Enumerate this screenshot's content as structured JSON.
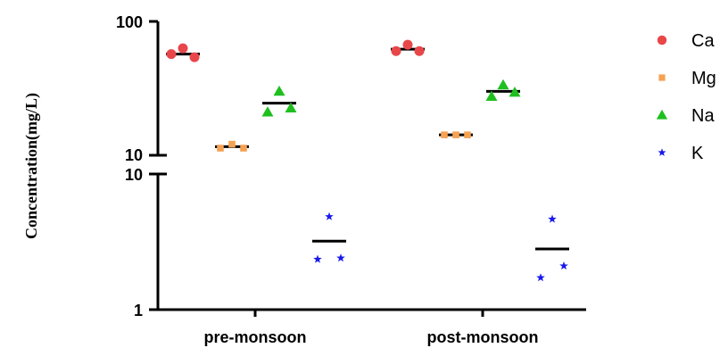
{
  "chart_data": {
    "type": "scatter",
    "ylabel": "Concentration(mg/L)",
    "yscale": "log",
    "axis_break": [
      10,
      10
    ],
    "y_segments": [
      {
        "range": [
          10,
          100
        ],
        "ticks": [
          "10",
          "100"
        ]
      },
      {
        "range": [
          1,
          10
        ],
        "ticks": [
          "1",
          "10"
        ]
      }
    ],
    "categories": [
      "pre-monsoon",
      "post-monsoon"
    ],
    "legend_position": "right",
    "series": [
      {
        "name": "Ca",
        "marker": "circle",
        "color": "#e8474a",
        "points": [
          [
            57,
            63,
            54
          ],
          [
            60,
            67,
            60
          ]
        ],
        "mean": [
          57,
          62
        ]
      },
      {
        "name": "Mg",
        "marker": "square",
        "color": "#f5a253",
        "points": [
          [
            11.3,
            12.1,
            11.3
          ],
          [
            14.2,
            14.2,
            14.2
          ]
        ],
        "mean": [
          11.6,
          14.2
        ]
      },
      {
        "name": "Na",
        "marker": "triangle",
        "color": "#1fbf1f",
        "points": [
          [
            21,
            30,
            22.5
          ],
          [
            27.5,
            33.5,
            29.5
          ]
        ],
        "mean": [
          24.5,
          30
        ]
      },
      {
        "name": "K",
        "marker": "star",
        "color": "#1a1aeb",
        "points": [
          [
            2.35,
            4.85,
            2.4
          ],
          [
            1.72,
            4.65,
            2.1
          ]
        ],
        "mean": [
          3.2,
          2.8
        ]
      }
    ]
  }
}
